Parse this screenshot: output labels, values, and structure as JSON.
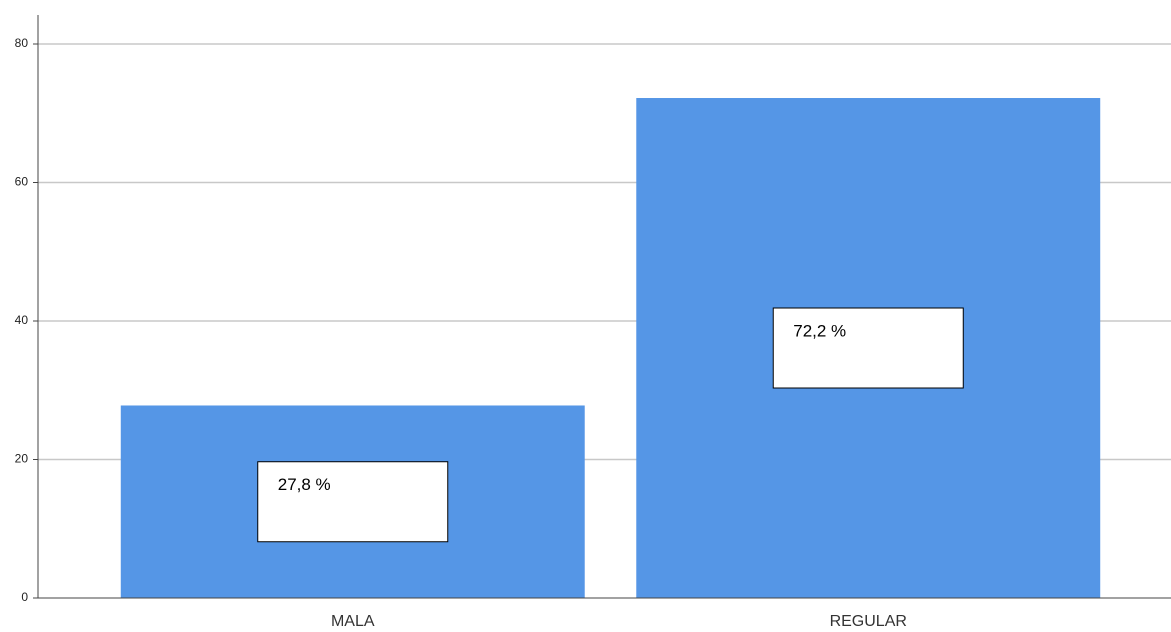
{
  "chart_data": {
    "type": "bar",
    "categories": [
      "MALA",
      "REGULAR"
    ],
    "values": [
      27.8,
      72.2
    ],
    "value_labels": [
      "27,8 %",
      "72,2 %"
    ],
    "color": "#5596e6",
    "ylim": [
      0,
      80
    ],
    "yticks": [
      0,
      20,
      40,
      60,
      80
    ],
    "grid": true
  }
}
